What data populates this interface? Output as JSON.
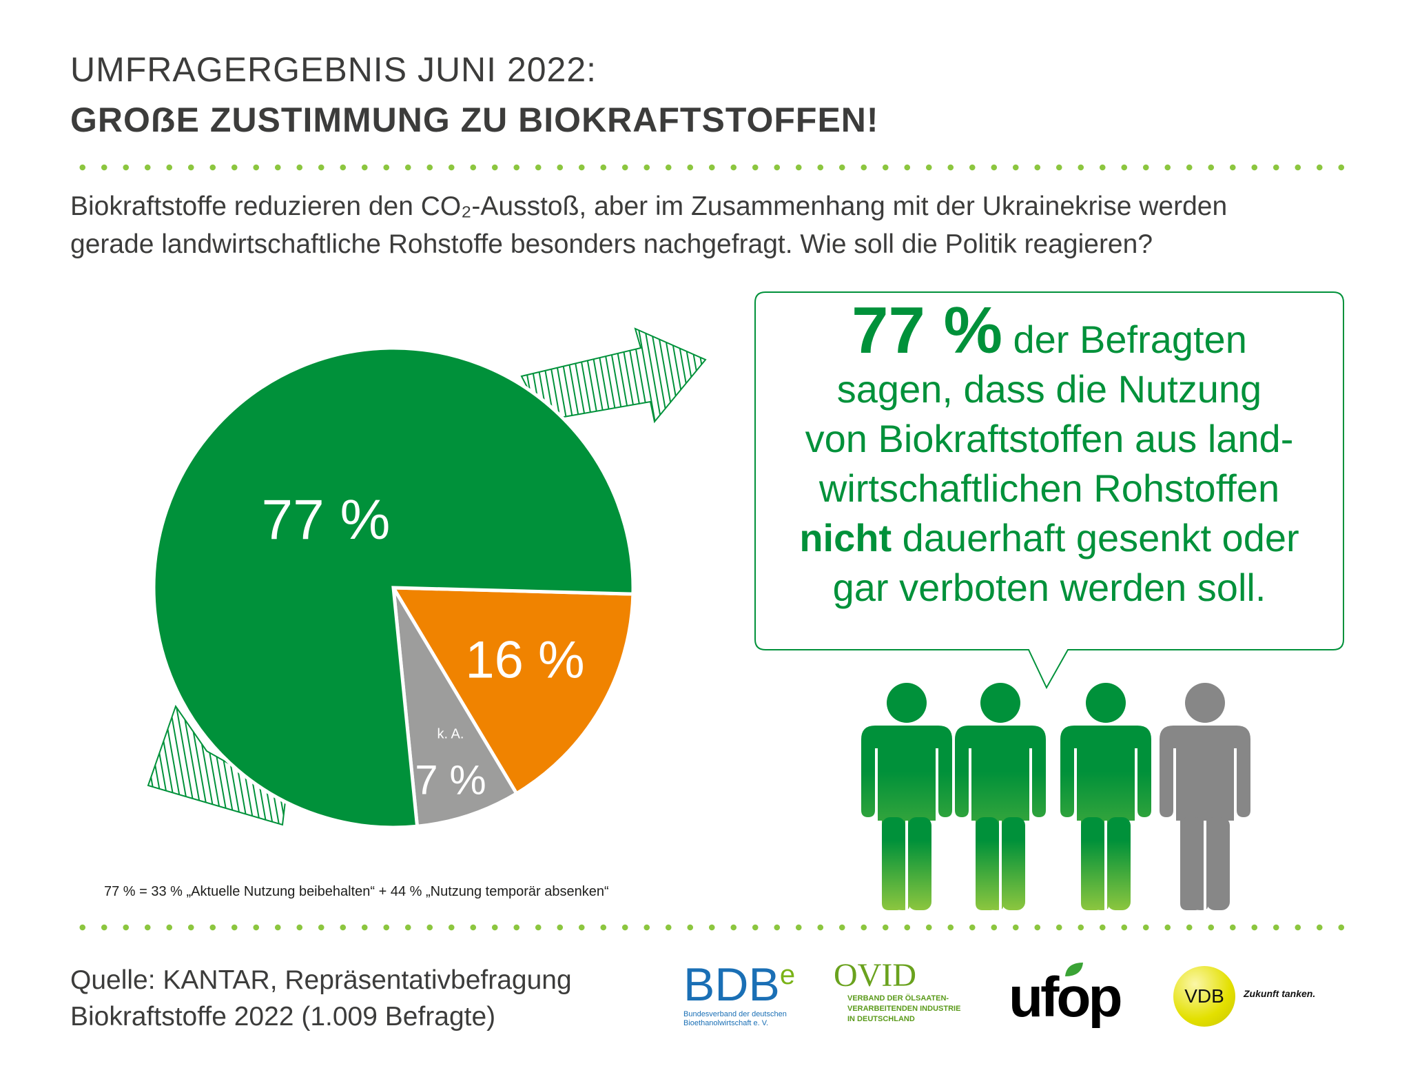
{
  "header": {
    "title_line1": "UMFRAGERGEBNIS JUNI 2022:",
    "title_line2": "GROẞE ZUSTIMMUNG ZU BIOKRAFTSTOFFEN!"
  },
  "question": {
    "line1": "Biokraftstoffe reduzieren den CO₂-Ausstoß, aber im Zusammenhang mit der Ukrainekrise werden",
    "line2": "gerade landwirtschaftliche Rohstoffe besonders nachgefragt. Wie soll die Politik reagieren?"
  },
  "chart_data": {
    "type": "pie",
    "slices": [
      {
        "label": "77 %",
        "value": 77,
        "color": "#00913a"
      },
      {
        "label": "16 %",
        "value": 16,
        "color": "#f08300"
      },
      {
        "label": "7 %",
        "sublabel": "k. A.",
        "value": 7,
        "color": "#9d9d9c"
      }
    ],
    "footnote": "77 % = 33 % „Aktuelle Nutzung beibehalten“ + 44 % „Nutzung temporär absenken“"
  },
  "bubble": {
    "big": "77 %",
    "line1_rest": " der Befragten",
    "line2": "sagen, dass die Nutzung",
    "line3": "von Biokraftstoffen aus land-",
    "line4": "wirtschaftlichen Rohstoffen",
    "bold_word": "nicht",
    "line5_rest": " dauerhaft gesenkt oder",
    "line6": "gar verboten werden soll."
  },
  "people": {
    "icon": "person-icon",
    "share_green": 0.77,
    "count": 4
  },
  "source": {
    "line1": "Quelle: KANTAR, Repräsentativbefragung",
    "line2": "Biokraftstoffe 2022 (1.009 Befragte)"
  },
  "logos": {
    "bdbe": {
      "name": "BDB",
      "sup": "e",
      "sub1": "Bundesverband der deutschen",
      "sub2": "Bioethanolwirtschaft e. V.",
      "color": "#1a6fb5"
    },
    "ovid": {
      "name": "OVID",
      "sub1": "VERBAND DER ÖLSAATEN-",
      "sub2": "VERARBEITENDEN INDUSTRIE",
      "sub3": "IN DEUTSCHLAND",
      "color": "#5a9a1a"
    },
    "ufop": {
      "name": "ufop"
    },
    "vdb": {
      "name": "VDB",
      "tagline": "Zukunft tanken."
    }
  }
}
